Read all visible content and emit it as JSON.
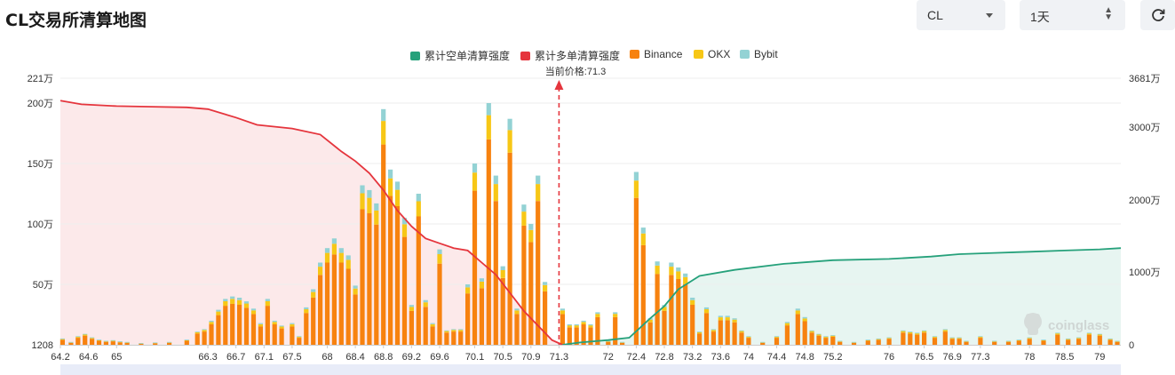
{
  "title": "CL交易所清算地图",
  "controls": {
    "symbol": "CL",
    "range": "1天",
    "refresh_icon": "refresh-icon",
    "caret_icon": "chevron-down-icon",
    "updown_icon": "up-down-icon"
  },
  "legend": [
    {
      "label": "累计空单清算强度",
      "color": "#26a17b"
    },
    {
      "label": "累计多单清算强度",
      "color": "#e5353d"
    },
    {
      "label": "Binance",
      "color": "#f7820f"
    },
    {
      "label": "OKX",
      "color": "#f7c716"
    },
    {
      "label": "Bybit",
      "color": "#93d2d4"
    }
  ],
  "price_label": "当前价格:71.3",
  "watermark": "coinglass",
  "chart_data": {
    "type": "bar",
    "current_price": 71.3,
    "left_axis": {
      "ticks": [
        "1208",
        "50万",
        "100万",
        "150万",
        "200万",
        "221万"
      ],
      "values": [
        1208,
        500000,
        1000000,
        1500000,
        2000000,
        2210000
      ]
    },
    "right_axis": {
      "ticks": [
        "0",
        "1000万",
        "2000万",
        "3000万",
        "3681万"
      ],
      "values": [
        0,
        10000000,
        20000000,
        30000000,
        36810000
      ]
    },
    "x_ticks": [
      "64.2",
      "64.6",
      "65",
      "66.3",
      "66.7",
      "67.1",
      "67.5",
      "68",
      "68.4",
      "68.8",
      "69.2",
      "69.6",
      "70.1",
      "70.5",
      "70.9",
      "71.3",
      "72",
      "72.4",
      "72.8",
      "73.2",
      "73.6",
      "74",
      "74.4",
      "74.8",
      "75.2",
      "76",
      "76.5",
      "76.9",
      "77.3",
      "78",
      "78.5",
      "79"
    ],
    "x_range": [
      64.2,
      79.3
    ],
    "exchange_shares": {
      "Binance": 0.85,
      "OKX": 0.1,
      "Bybit": 0.05
    },
    "bars": [
      [
        64.23,
        50000
      ],
      [
        64.35,
        20000
      ],
      [
        64.45,
        70000
      ],
      [
        64.55,
        90000
      ],
      [
        64.65,
        60000
      ],
      [
        64.75,
        40000
      ],
      [
        64.85,
        30000
      ],
      [
        64.95,
        35000
      ],
      [
        65.05,
        25000
      ],
      [
        65.15,
        20000
      ],
      [
        65.35,
        10000
      ],
      [
        65.55,
        15000
      ],
      [
        65.75,
        20000
      ],
      [
        66.0,
        40000
      ],
      [
        66.15,
        110000
      ],
      [
        66.25,
        130000
      ],
      [
        66.35,
        200000
      ],
      [
        66.45,
        290000
      ],
      [
        66.55,
        380000
      ],
      [
        66.65,
        400000
      ],
      [
        66.75,
        390000
      ],
      [
        66.85,
        360000
      ],
      [
        66.95,
        300000
      ],
      [
        67.05,
        180000
      ],
      [
        67.15,
        380000
      ],
      [
        67.25,
        200000
      ],
      [
        67.35,
        160000
      ],
      [
        67.5,
        180000
      ],
      [
        67.6,
        70000
      ],
      [
        67.7,
        310000
      ],
      [
        67.8,
        460000
      ],
      [
        67.9,
        680000
      ],
      [
        68.0,
        800000
      ],
      [
        68.1,
        880000
      ],
      [
        68.2,
        800000
      ],
      [
        68.3,
        740000
      ],
      [
        68.4,
        490000
      ],
      [
        68.5,
        1320000
      ],
      [
        68.6,
        1280000
      ],
      [
        68.7,
        1170000
      ],
      [
        68.8,
        1950000
      ],
      [
        68.9,
        1450000
      ],
      [
        69.0,
        1350000
      ],
      [
        69.1,
        1050000
      ],
      [
        69.2,
        330000
      ],
      [
        69.3,
        1250000
      ],
      [
        69.4,
        370000
      ],
      [
        69.5,
        180000
      ],
      [
        69.6,
        790000
      ],
      [
        69.7,
        120000
      ],
      [
        69.8,
        130000
      ],
      [
        69.9,
        130000
      ],
      [
        70.0,
        500000
      ],
      [
        70.1,
        1500000
      ],
      [
        70.2,
        550000
      ],
      [
        70.3,
        2000000
      ],
      [
        70.4,
        1400000
      ],
      [
        70.5,
        650000
      ],
      [
        70.6,
        1870000
      ],
      [
        70.7,
        300000
      ],
      [
        70.8,
        1160000
      ],
      [
        70.9,
        1000000
      ],
      [
        71.0,
        1400000
      ],
      [
        71.1,
        520000
      ],
      [
        71.35,
        300000
      ],
      [
        71.45,
        170000
      ],
      [
        71.55,
        170000
      ],
      [
        71.65,
        200000
      ],
      [
        71.75,
        170000
      ],
      [
        71.85,
        270000
      ],
      [
        72.0,
        30000
      ],
      [
        72.1,
        270000
      ],
      [
        72.2,
        20000
      ],
      [
        72.4,
        1430000
      ],
      [
        72.5,
        970000
      ],
      [
        72.6,
        220000
      ],
      [
        72.7,
        690000
      ],
      [
        72.8,
        330000
      ],
      [
        72.9,
        680000
      ],
      [
        73.0,
        640000
      ],
      [
        73.1,
        590000
      ],
      [
        73.2,
        390000
      ],
      [
        73.3,
        110000
      ],
      [
        73.4,
        310000
      ],
      [
        73.5,
        130000
      ],
      [
        73.6,
        240000
      ],
      [
        73.7,
        240000
      ],
      [
        73.8,
        220000
      ],
      [
        73.9,
        120000
      ],
      [
        74.0,
        70000
      ],
      [
        74.2,
        20000
      ],
      [
        74.4,
        70000
      ],
      [
        74.55,
        190000
      ],
      [
        74.7,
        300000
      ],
      [
        74.8,
        230000
      ],
      [
        74.9,
        120000
      ],
      [
        75.0,
        90000
      ],
      [
        75.1,
        70000
      ],
      [
        75.2,
        80000
      ],
      [
        75.3,
        30000
      ],
      [
        75.5,
        20000
      ],
      [
        75.7,
        40000
      ],
      [
        75.85,
        50000
      ],
      [
        76.0,
        60000
      ],
      [
        76.2,
        120000
      ],
      [
        76.3,
        110000
      ],
      [
        76.4,
        100000
      ],
      [
        76.5,
        120000
      ],
      [
        76.65,
        70000
      ],
      [
        76.8,
        130000
      ],
      [
        76.9,
        60000
      ],
      [
        77.0,
        60000
      ],
      [
        77.1,
        30000
      ],
      [
        77.3,
        70000
      ],
      [
        77.5,
        30000
      ],
      [
        77.7,
        30000
      ],
      [
        77.85,
        40000
      ],
      [
        78.0,
        60000
      ],
      [
        78.2,
        40000
      ],
      [
        78.4,
        100000
      ],
      [
        78.55,
        50000
      ],
      [
        78.7,
        60000
      ],
      [
        78.85,
        100000
      ],
      [
        79.0,
        90000
      ],
      [
        79.15,
        50000
      ],
      [
        79.25,
        30000
      ]
    ],
    "long_cum_curve": [
      [
        64.2,
        2020000
      ],
      [
        64.5,
        1990000
      ],
      [
        65.0,
        1975000
      ],
      [
        65.5,
        1970000
      ],
      [
        66.0,
        1965000
      ],
      [
        66.3,
        1950000
      ],
      [
        66.7,
        1880000
      ],
      [
        67.0,
        1820000
      ],
      [
        67.5,
        1790000
      ],
      [
        67.9,
        1740000
      ],
      [
        68.2,
        1600000
      ],
      [
        68.4,
        1520000
      ],
      [
        68.6,
        1420000
      ],
      [
        68.8,
        1280000
      ],
      [
        69.0,
        1110000
      ],
      [
        69.2,
        980000
      ],
      [
        69.4,
        880000
      ],
      [
        69.6,
        840000
      ],
      [
        69.8,
        800000
      ],
      [
        70.0,
        780000
      ],
      [
        70.2,
        680000
      ],
      [
        70.4,
        580000
      ],
      [
        70.6,
        430000
      ],
      [
        70.8,
        280000
      ],
      [
        71.0,
        160000
      ],
      [
        71.2,
        40000
      ],
      [
        71.35,
        0
      ]
    ],
    "short_cum_curve": [
      [
        71.35,
        0
      ],
      [
        71.6,
        20000
      ],
      [
        72.0,
        40000
      ],
      [
        72.3,
        60000
      ],
      [
        72.6,
        220000
      ],
      [
        72.8,
        320000
      ],
      [
        73.0,
        460000
      ],
      [
        73.3,
        570000
      ],
      [
        73.8,
        620000
      ],
      [
        74.5,
        670000
      ],
      [
        75.2,
        700000
      ],
      [
        76.0,
        710000
      ],
      [
        76.6,
        730000
      ],
      [
        77.0,
        750000
      ],
      [
        77.5,
        760000
      ],
      [
        78.0,
        770000
      ],
      [
        78.5,
        780000
      ],
      [
        79.0,
        790000
      ],
      [
        79.3,
        800000
      ]
    ]
  }
}
